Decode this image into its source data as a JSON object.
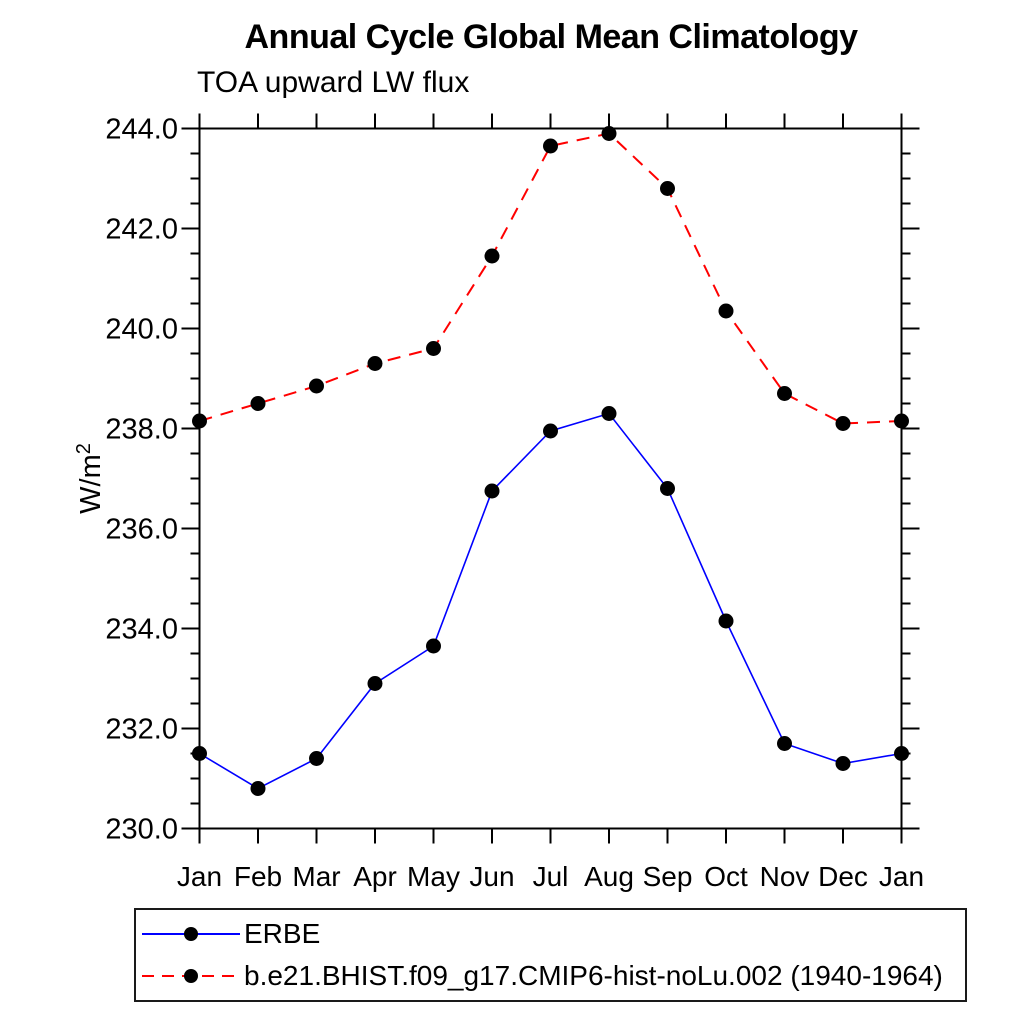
{
  "title": "Annual Cycle Global Mean Climatology",
  "subtitle": "TOA upward LW flux",
  "legend": {
    "items": [
      {
        "label": "ERBE"
      },
      {
        "label": "b.e21.BHIST.f09_g17.CMIP6-hist-noLu.002 (1940-1964)"
      }
    ]
  },
  "chart_data": {
    "type": "line",
    "title": "Annual Cycle Global Mean Climatology",
    "subtitle": "TOA upward LW flux",
    "xlabel": "",
    "ylabel": "W/m²",
    "x_categories": [
      "Jan",
      "Feb",
      "Mar",
      "Apr",
      "May",
      "Jun",
      "Jul",
      "Aug",
      "Sep",
      "Oct",
      "Nov",
      "Dec",
      "Jan"
    ],
    "ylim": [
      230.0,
      244.0
    ],
    "y_tick_major_interval": 2.0,
    "y_tick_minor_interval": 0.5,
    "y_tick_labels": [
      "230.0",
      "232.0",
      "234.0",
      "236.0",
      "238.0",
      "240.0",
      "242.0",
      "244.0"
    ],
    "grid": false,
    "legend_position": "bottom-left box",
    "frame_color": "#000000",
    "marker_color": "#000000",
    "series": [
      {
        "name": "ERBE",
        "color": "#0000ff",
        "line_style": "solid",
        "marker": "filled-circle",
        "values": [
          231.5,
          230.8,
          231.4,
          232.9,
          233.65,
          236.75,
          237.95,
          238.3,
          236.8,
          234.15,
          231.7,
          231.3,
          231.5
        ]
      },
      {
        "name": "b.e21.BHIST.f09_g17.CMIP6-hist-noLu.002 (1940-1964)",
        "color": "#ff0000",
        "line_style": "dashed",
        "marker": "filled-circle",
        "values": [
          238.15,
          238.5,
          238.85,
          239.3,
          239.6,
          241.45,
          243.65,
          243.9,
          242.8,
          240.35,
          238.7,
          238.1,
          238.15
        ]
      }
    ]
  }
}
